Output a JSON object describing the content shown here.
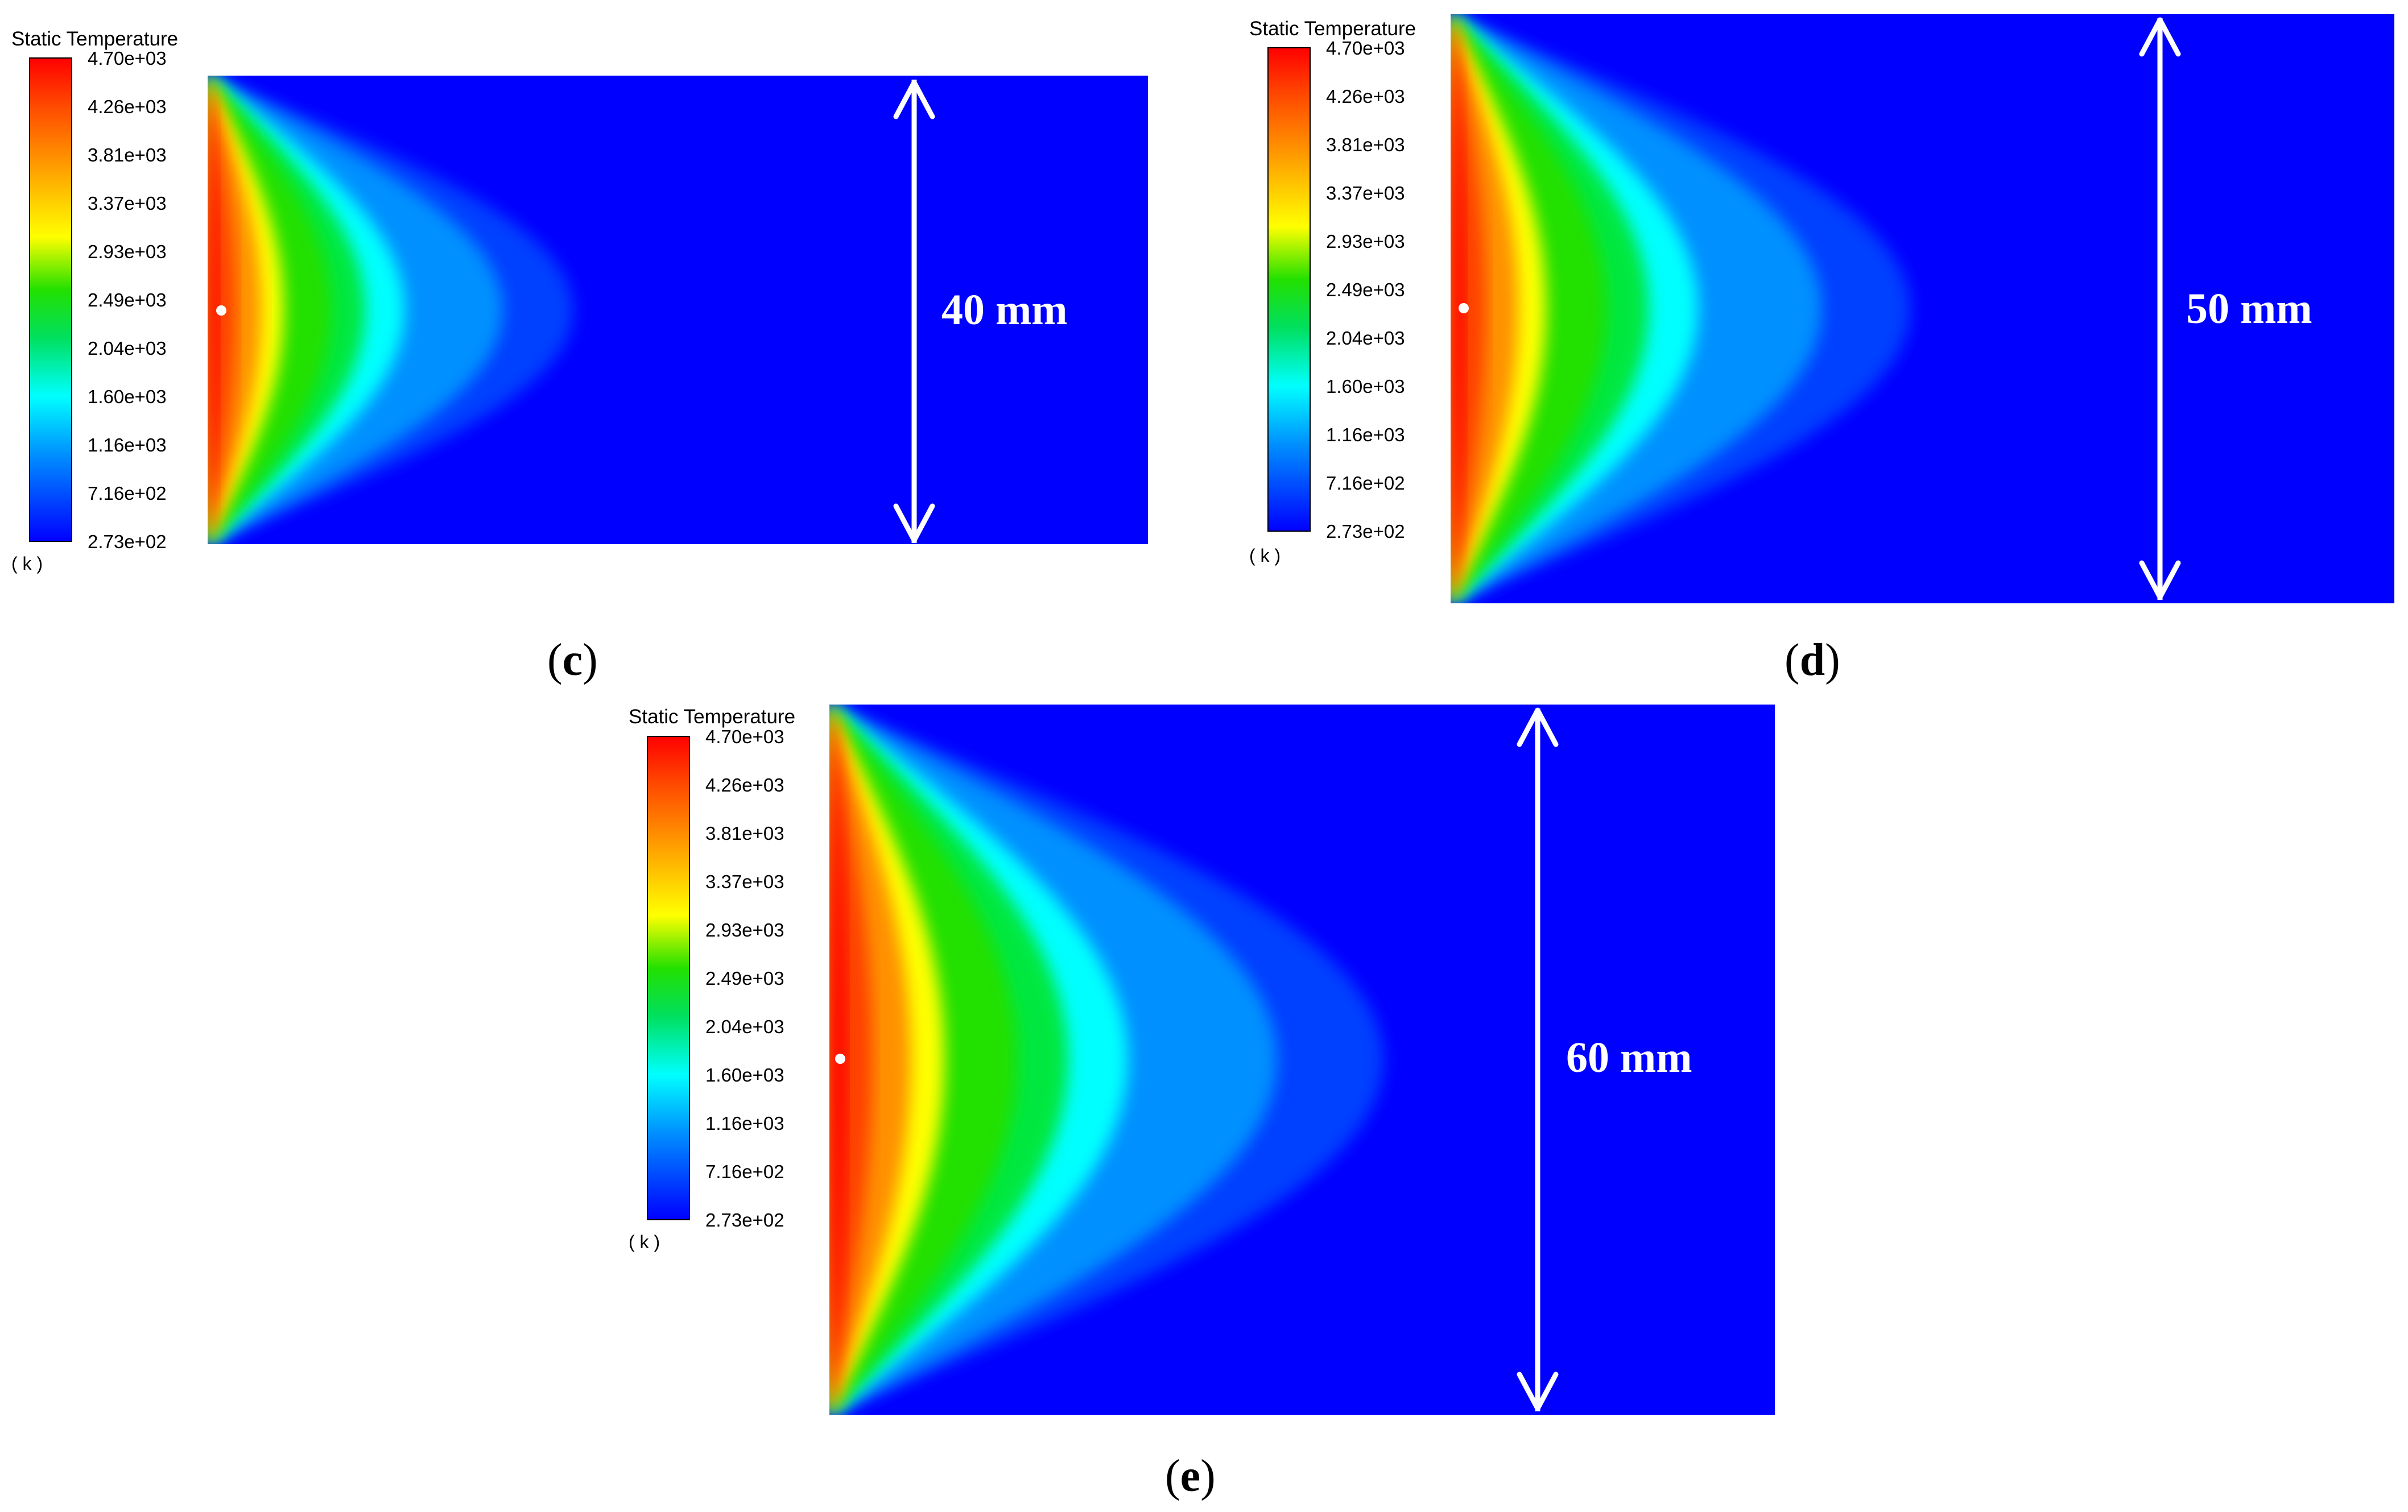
{
  "colorbar": {
    "title": "Static Temperature",
    "unit": "( k )",
    "ticks": [
      "4.70e+03",
      "4.26e+03",
      "3.81e+03",
      "3.37e+03",
      "2.93e+03",
      "2.49e+03",
      "2.04e+03",
      "1.60e+03",
      "1.16e+03",
      "7.16e+02",
      "2.73e+02"
    ],
    "colors": [
      "#ff0000",
      "#ff4a00",
      "#ff8c00",
      "#ffc800",
      "#ffff00",
      "#b0ff00",
      "#00e000",
      "#00e87a",
      "#00ffff",
      "#0096ff",
      "#0000ff"
    ]
  },
  "panels": [
    {
      "id": "c",
      "label": "(c)",
      "letter": "c",
      "dimension": "40 mm"
    },
    {
      "id": "d",
      "label": "(d)",
      "letter": "d",
      "dimension": "50 mm"
    },
    {
      "id": "e",
      "label": "(e)",
      "letter": "e",
      "dimension": "60 mm"
    }
  ],
  "field": {
    "background": "#0000ff",
    "profile_colors": [
      "#ff0000",
      "#ff8800",
      "#ffff00",
      "#00dd00",
      "#00ffff",
      "#0000ff"
    ]
  }
}
